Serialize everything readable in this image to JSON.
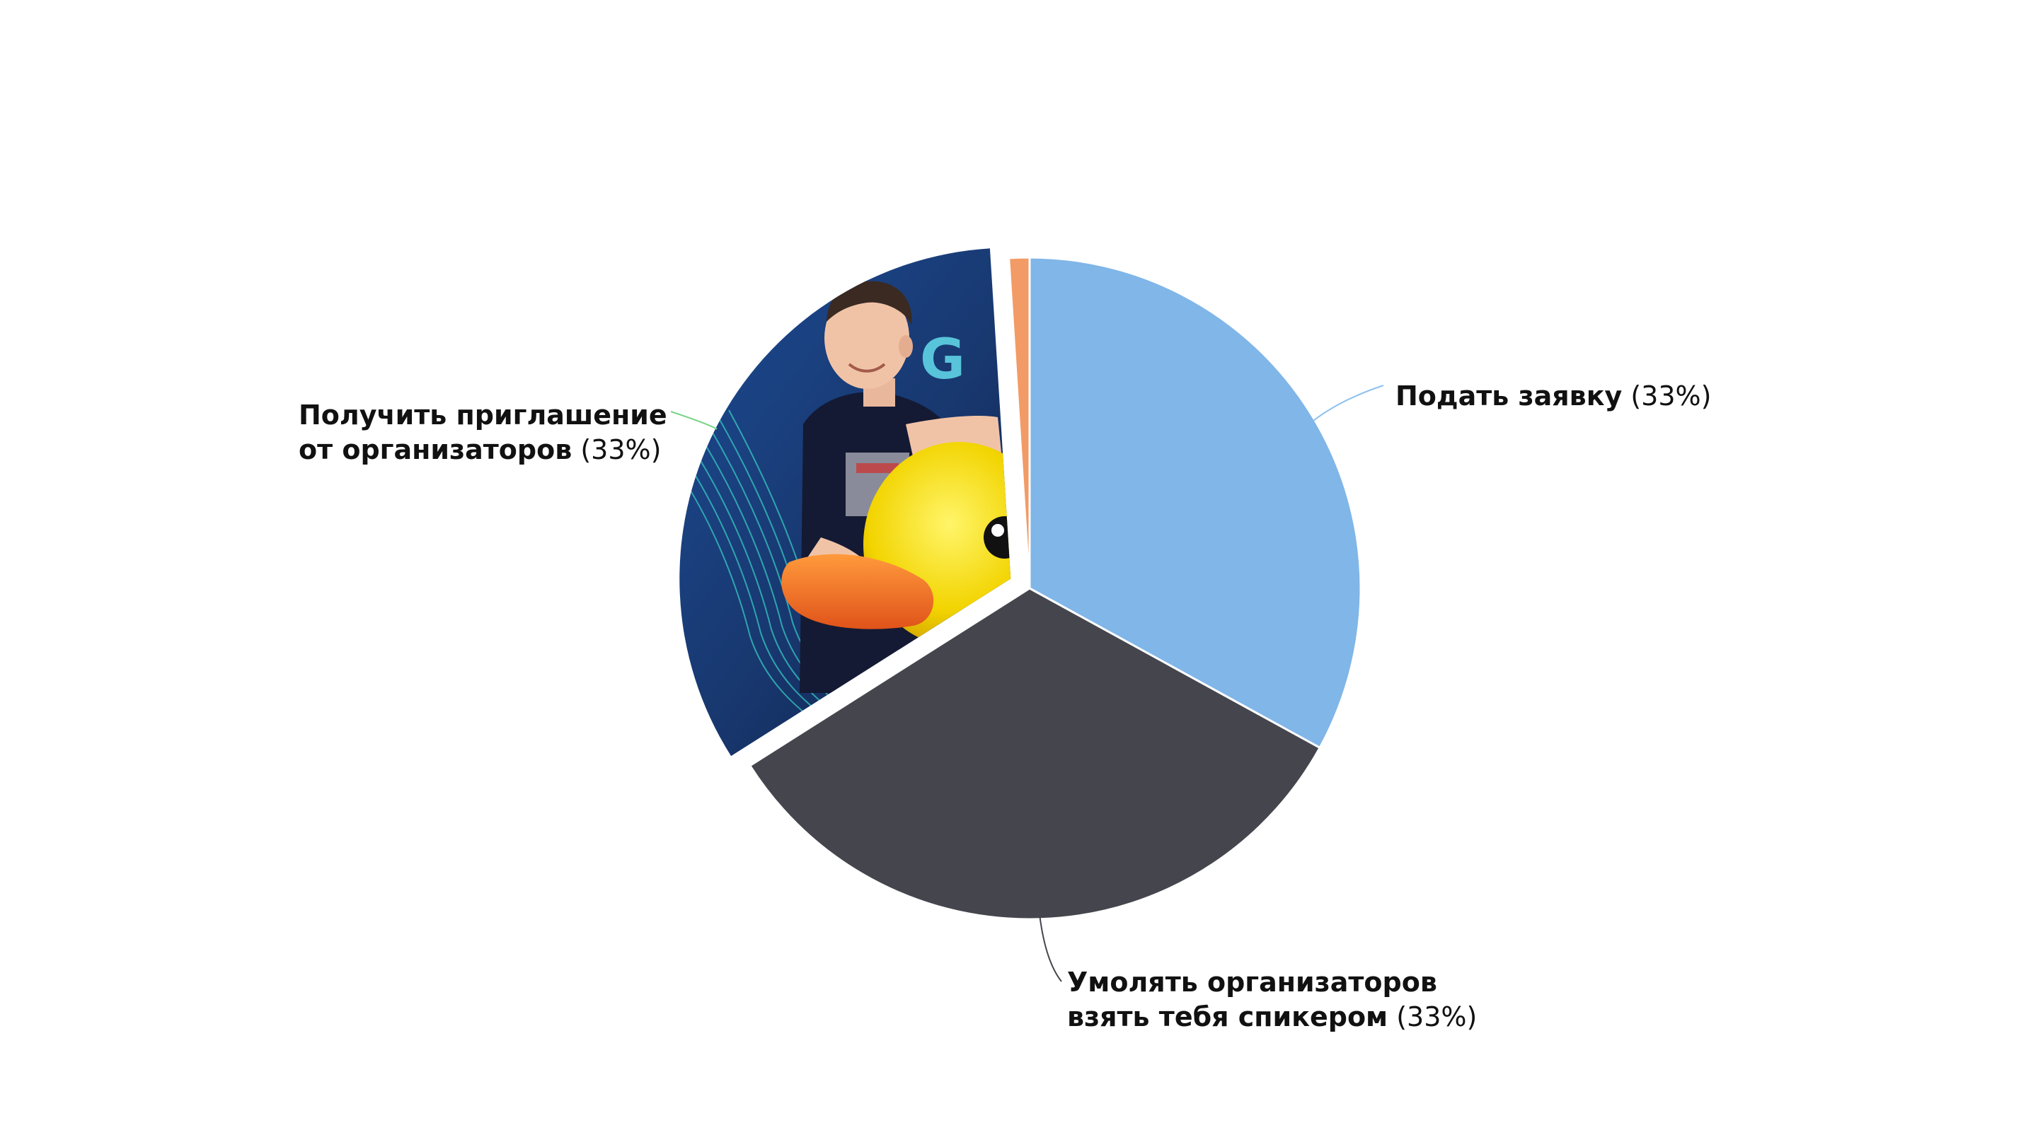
{
  "chart_data": {
    "type": "pie",
    "start_angle_deg": 0,
    "direction": "clockwise",
    "slices": [
      {
        "id": "apply",
        "label_lines": [
          "Подать заявку"
        ],
        "value": 33,
        "percent_text": "(33%)",
        "color": "#80b6e8",
        "exploded": false,
        "fill": "solid"
      },
      {
        "id": "beg",
        "label_lines": [
          "Умолять организаторов",
          "взять тебя спикером"
        ],
        "value": 33,
        "percent_text": "(33%)",
        "color": "#45464d",
        "exploded": false,
        "fill": "solid"
      },
      {
        "id": "invite",
        "label_lines": [
          "Получить приглашение",
          "от организаторов"
        ],
        "value": 33,
        "percent_text": "(33%)",
        "color": "#1f3d78",
        "exploded": true,
        "fill": "photo",
        "image_description": "photo of a smiling man in a dark t-shirt leaning on a large yellow rubber duck, blue background"
      },
      {
        "id": "other",
        "label_lines": [],
        "value": 1,
        "percent_text": "",
        "color": "#f29b66",
        "exploded": false,
        "fill": "solid"
      }
    ],
    "leader_colors": {
      "apply": "#8fc1ee",
      "beg": "#45464d",
      "invite": "#7bd48a"
    }
  }
}
